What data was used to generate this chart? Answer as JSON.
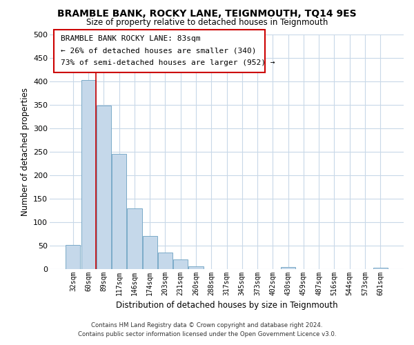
{
  "title": "BRAMBLE BANK, ROCKY LANE, TEIGNMOUTH, TQ14 9ES",
  "subtitle": "Size of property relative to detached houses in Teignmouth",
  "xlabel": "Distribution of detached houses by size in Teignmouth",
  "ylabel": "Number of detached properties",
  "bar_labels": [
    "32sqm",
    "60sqm",
    "89sqm",
    "117sqm",
    "146sqm",
    "174sqm",
    "203sqm",
    "231sqm",
    "260sqm",
    "288sqm",
    "317sqm",
    "345sqm",
    "373sqm",
    "402sqm",
    "430sqm",
    "459sqm",
    "487sqm",
    "516sqm",
    "544sqm",
    "573sqm",
    "601sqm"
  ],
  "bar_values": [
    52,
    403,
    348,
    246,
    130,
    71,
    35,
    21,
    6,
    0,
    0,
    0,
    0,
    0,
    5,
    0,
    0,
    0,
    0,
    0,
    3
  ],
  "bar_color": "#c5d8ea",
  "bar_edge_color": "#7aaac8",
  "vline_x_index": 1,
  "vline_color": "#cc0000",
  "ylim": [
    0,
    500
  ],
  "yticks": [
    0,
    50,
    100,
    150,
    200,
    250,
    300,
    350,
    400,
    450,
    500
  ],
  "annotation_title": "BRAMBLE BANK ROCKY LANE: 83sqm",
  "annotation_line1": "← 26% of detached houses are smaller (340)",
  "annotation_line2": "73% of semi-detached houses are larger (952) →",
  "footer_line1": "Contains HM Land Registry data © Crown copyright and database right 2024.",
  "footer_line2": "Contains public sector information licensed under the Open Government Licence v3.0.",
  "background_color": "#ffffff",
  "grid_color": "#c8d8e8"
}
